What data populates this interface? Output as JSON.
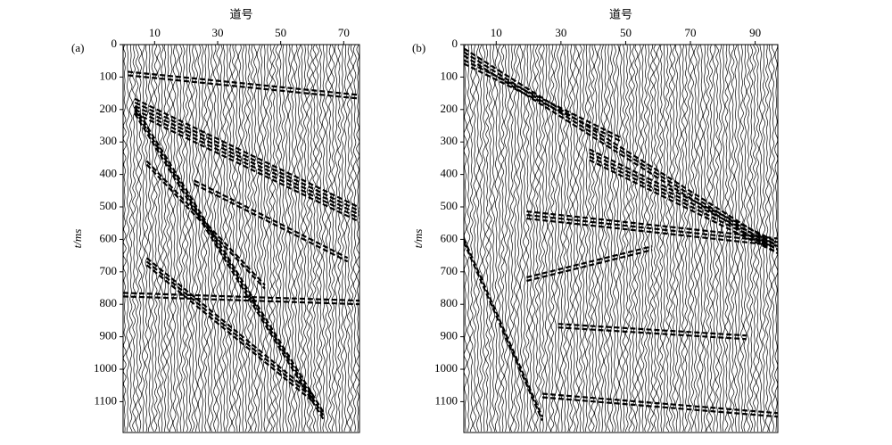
{
  "chart_data": [
    {
      "type": "seismic",
      "panel_label": "(a)",
      "x_label": "道号",
      "y_label": "t/ms",
      "xlim": [
        0,
        75
      ],
      "xticks": [
        10,
        30,
        50,
        70
      ],
      "ylim": [
        0,
        1195
      ],
      "yticks": [
        0,
        100,
        200,
        300,
        400,
        500,
        600,
        700,
        800,
        900,
        1000,
        1100
      ]
    },
    {
      "type": "seismic",
      "panel_label": "(b)",
      "x_label": "道号",
      "y_label": "t/ms",
      "xlim": [
        0,
        97
      ],
      "xticks": [
        10,
        30,
        50,
        70,
        90
      ],
      "ylim": [
        0,
        1195
      ],
      "yticks": [
        0,
        100,
        200,
        300,
        400,
        500,
        600,
        700,
        800,
        900,
        1000,
        1100
      ]
    }
  ]
}
